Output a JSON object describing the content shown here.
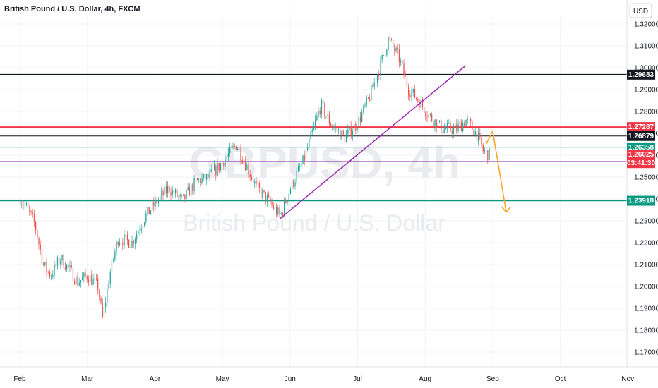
{
  "header": {
    "title": "British Pound / U.S. Dollar, 4h, FXCM",
    "currency_button": "USD"
  },
  "watermark": {
    "symbol": "GBPUSD, 4h",
    "name": "British Pound / U.S. Dollar"
  },
  "colors": {
    "up": "#26a69a",
    "down": "#ef5350",
    "black_line": "#131722",
    "red_line": "#f23645",
    "teal_line": "#089981",
    "light_teal_line": "#88d3c4",
    "purple_line": "#7b1fa2",
    "trend_line": "#9c27b0",
    "arrow": "#f7a21b",
    "current_tag": "#f23645",
    "purple_tag": "#673ab7"
  },
  "chart_data": {
    "type": "candlestick",
    "symbol": "GBPUSD",
    "timeframe": "4h",
    "source": "FXCM",
    "ylim": [
      1.165,
      1.323
    ],
    "x_months": [
      "Feb",
      "Mar",
      "Apr",
      "May",
      "Jun",
      "Jul",
      "Aug",
      "Sep",
      "Oct",
      "Nov"
    ],
    "y_ticks": [
      "1.32000",
      "1.31000",
      "1.30000",
      "1.29000",
      "1.28000",
      "1.27000",
      "1.26000",
      "1.25000",
      "1.24000",
      "1.23000",
      "1.22000",
      "1.21000",
      "1.20000",
      "1.19000",
      "1.18000",
      "1.17000"
    ],
    "y_tick_values": [
      1.32,
      1.31,
      1.3,
      1.29,
      1.28,
      1.27,
      1.26,
      1.25,
      1.24,
      1.23,
      1.22,
      1.21,
      1.2,
      1.19,
      1.18,
      1.17
    ],
    "price_path": [
      [
        0.0,
        1.24
      ],
      [
        0.1,
        1.236
      ],
      [
        0.22,
        1.228
      ],
      [
        0.34,
        1.21
      ],
      [
        0.45,
        1.205
      ],
      [
        0.6,
        1.213
      ],
      [
        0.72,
        1.208
      ],
      [
        0.85,
        1.202
      ],
      [
        1.0,
        1.205
      ],
      [
        1.15,
        1.2
      ],
      [
        1.22,
        1.185
      ],
      [
        1.32,
        1.205
      ],
      [
        1.45,
        1.222
      ],
      [
        1.65,
        1.22
      ],
      [
        1.85,
        1.232
      ],
      [
        2.0,
        1.238
      ],
      [
        2.2,
        1.245
      ],
      [
        2.4,
        1.239
      ],
      [
        2.6,
        1.248
      ],
      [
        2.8,
        1.25
      ],
      [
        3.0,
        1.257
      ],
      [
        3.2,
        1.265
      ],
      [
        3.35,
        1.255
      ],
      [
        3.5,
        1.245
      ],
      [
        3.7,
        1.238
      ],
      [
        3.85,
        1.232
      ],
      [
        4.0,
        1.245
      ],
      [
        4.2,
        1.258
      ],
      [
        4.45,
        1.283
      ],
      [
        4.6,
        1.274
      ],
      [
        4.8,
        1.268
      ],
      [
        5.0,
        1.275
      ],
      [
        5.15,
        1.285
      ],
      [
        5.32,
        1.3
      ],
      [
        5.45,
        1.313
      ],
      [
        5.6,
        1.305
      ],
      [
        5.75,
        1.29
      ],
      [
        5.9,
        1.285
      ],
      [
        6.05,
        1.278
      ],
      [
        6.25,
        1.272
      ],
      [
        6.45,
        1.272
      ],
      [
        6.6,
        1.276
      ],
      [
        6.75,
        1.27
      ],
      [
        6.85,
        1.262
      ],
      [
        6.95,
        1.26
      ]
    ],
    "horizontal_levels": [
      {
        "value": 1.29683,
        "label": "1.29683",
        "color": "#131722",
        "tag_color": "#131722",
        "width": 2
      },
      {
        "value": 1.27287,
        "label": "1.27287",
        "color": "#f23645",
        "tag_color": "#f23645",
        "width": 2
      },
      {
        "value": 1.26879,
        "label": "1.26879",
        "color": "#131722",
        "tag_color": "#131722",
        "width": 1
      },
      {
        "value": 1.26358,
        "label": "1.26358",
        "color": "#88d3c4",
        "tag_color": "#089981",
        "width": 1
      },
      {
        "value": 1.25701,
        "label": "1.25701",
        "color": "#7b1fa2",
        "tag_color": "#673ab7",
        "width": 1.5
      },
      {
        "value": 1.23918,
        "label": "1.23918",
        "color": "#089981",
        "tag_color": "#089981",
        "width": 1.5
      }
    ],
    "current_price": {
      "value": 1.26025,
      "label": "1.26025",
      "countdown": "03:41:30"
    },
    "trend_line": {
      "from": [
        3.85,
        1.231
      ],
      "to": [
        6.6,
        1.301
      ]
    },
    "projection_arrow": [
      [
        6.9,
        1.265
      ],
      [
        7.0,
        1.271
      ],
      [
        7.2,
        1.234
      ]
    ]
  }
}
